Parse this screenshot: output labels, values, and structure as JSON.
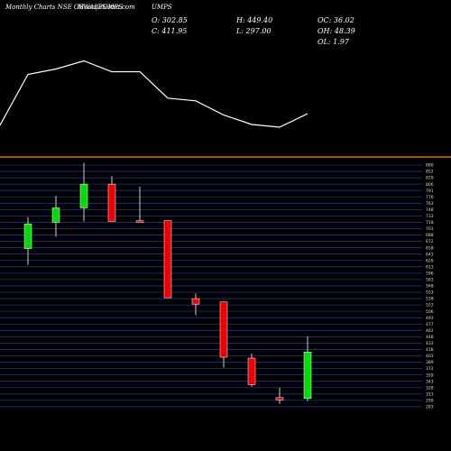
{
  "header": {
    "title": "Monthly Charts NSE OSWALPUMPS",
    "watermark": "MunafaSutra.com",
    "ticker_tail": "UMPS"
  },
  "ohlc": {
    "open": "O: 302.85",
    "close": "C: 411.95",
    "high": "H: 449.40",
    "low": "L: 297.00",
    "oc": "OC: 36.02",
    "oh": "OH: 48.39",
    "ol": "OL: 1.97"
  },
  "colors": {
    "up": "#00dd00",
    "down": "#ee0000",
    "separator": "#ff8800",
    "grid": "#223388",
    "line": "#ffffff"
  },
  "chart_data": [
    {
      "type": "line",
      "values": [
        545,
        620,
        628,
        640,
        624,
        624,
        585,
        581,
        560,
        546,
        542,
        562
      ]
    },
    {
      "type": "candlestick",
      "y_ticks": [
        880,
        852,
        829,
        806,
        791,
        776,
        763,
        748,
        733,
        718,
        703,
        688,
        672,
        658,
        643,
        629,
        613,
        596,
        583,
        568,
        553,
        538,
        523,
        506,
        493,
        477,
        462,
        448,
        433,
        418,
        403,
        389,
        372,
        359,
        343,
        328,
        313,
        299,
        283
      ],
      "candles": [
        {
          "open": 656,
          "high": 730,
          "low": 618,
          "close": 714
        },
        {
          "open": 718,
          "high": 778,
          "low": 684,
          "close": 752
        },
        {
          "open": 752,
          "high": 890,
          "low": 720,
          "close": 806
        },
        {
          "open": 806,
          "high": 835,
          "low": 720,
          "close": 720
        },
        {
          "open": 722,
          "high": 800,
          "low": 718,
          "close": 718
        },
        {
          "open": 722,
          "high": 722,
          "low": 540,
          "close": 540
        },
        {
          "open": 538,
          "high": 550,
          "low": 498,
          "close": 525
        },
        {
          "open": 530,
          "high": 530,
          "low": 375,
          "close": 400
        },
        {
          "open": 398,
          "high": 408,
          "low": 330,
          "close": 335
        },
        {
          "open": 305,
          "high": 328,
          "low": 290,
          "close": 300
        },
        {
          "open": 303,
          "high": 449,
          "low": 297,
          "close": 412
        }
      ]
    }
  ]
}
